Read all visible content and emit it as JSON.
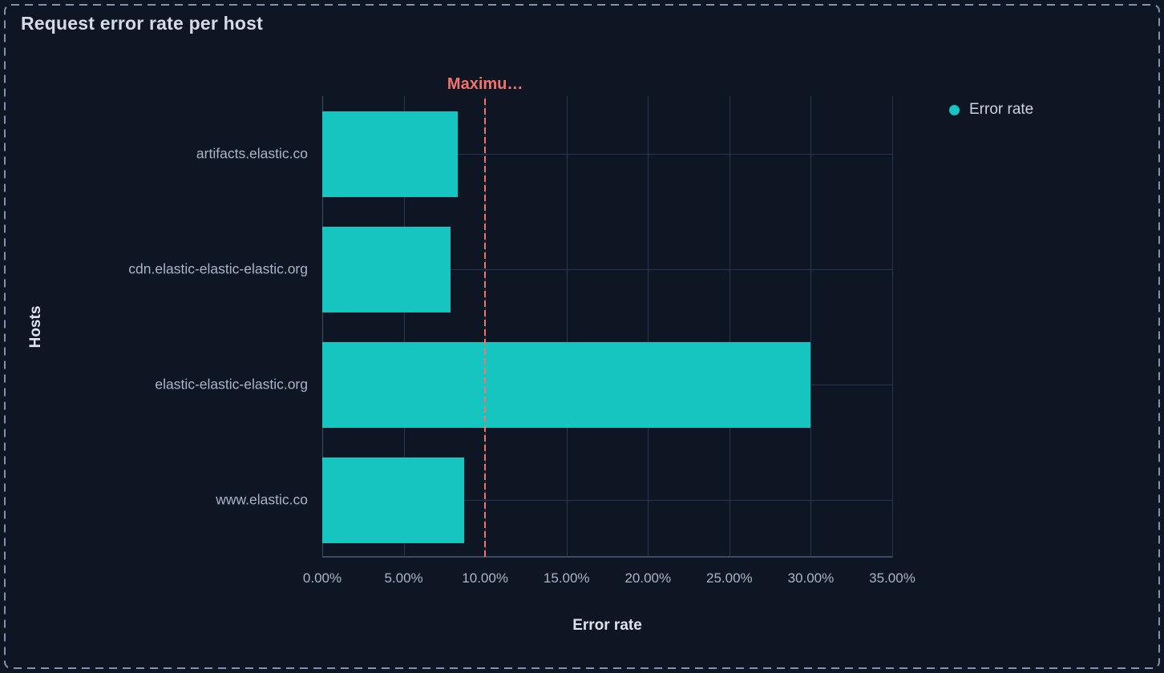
{
  "panel": {
    "title": "Request error rate per host"
  },
  "legend": {
    "items": [
      {
        "label": "Error rate",
        "color": "#16c5c0"
      }
    ]
  },
  "chart_data": {
    "type": "bar",
    "orientation": "horizontal",
    "title": "Request error rate per host",
    "categories": [
      "artifacts.elastic.co",
      "cdn.elastic-elastic-elastic.org",
      "elastic-elastic-elastic.org",
      "www.elastic.co"
    ],
    "series": [
      {
        "name": "Error rate",
        "color": "#16c5c0",
        "values": [
          8.3,
          7.9,
          30,
          8.7
        ]
      }
    ],
    "value_unit": "percent",
    "xlabel": "Error rate",
    "ylabel": "Hosts",
    "xlim": [
      0,
      35
    ],
    "x_ticks": [
      {
        "value": 0,
        "label": "0.00%"
      },
      {
        "value": 5,
        "label": "5.00%"
      },
      {
        "value": 10,
        "label": "10.00%"
      },
      {
        "value": 15,
        "label": "15.00%"
      },
      {
        "value": 20,
        "label": "20.00%"
      },
      {
        "value": 25,
        "label": "25.00%"
      },
      {
        "value": 30,
        "label": "30.00%"
      },
      {
        "value": 35,
        "label": "35.00%"
      }
    ],
    "grid": true,
    "legend_position": "top-right",
    "annotations": [
      {
        "label": "Maximu…",
        "x": 10,
        "color": "#f6726a",
        "line_style": "dashed"
      }
    ]
  },
  "colors": {
    "background": "#0e1624",
    "panel_border": "#7e94b2",
    "bar": "#16c5c0",
    "annotation": "#f6726a",
    "grid": "#28374f",
    "axis_line": "#3b4b63",
    "title_text": "#d3dce9",
    "axis_title_text": "#dde4ee",
    "tick_text": "#a9b5c8",
    "legend_text": "#ccd4e1"
  }
}
